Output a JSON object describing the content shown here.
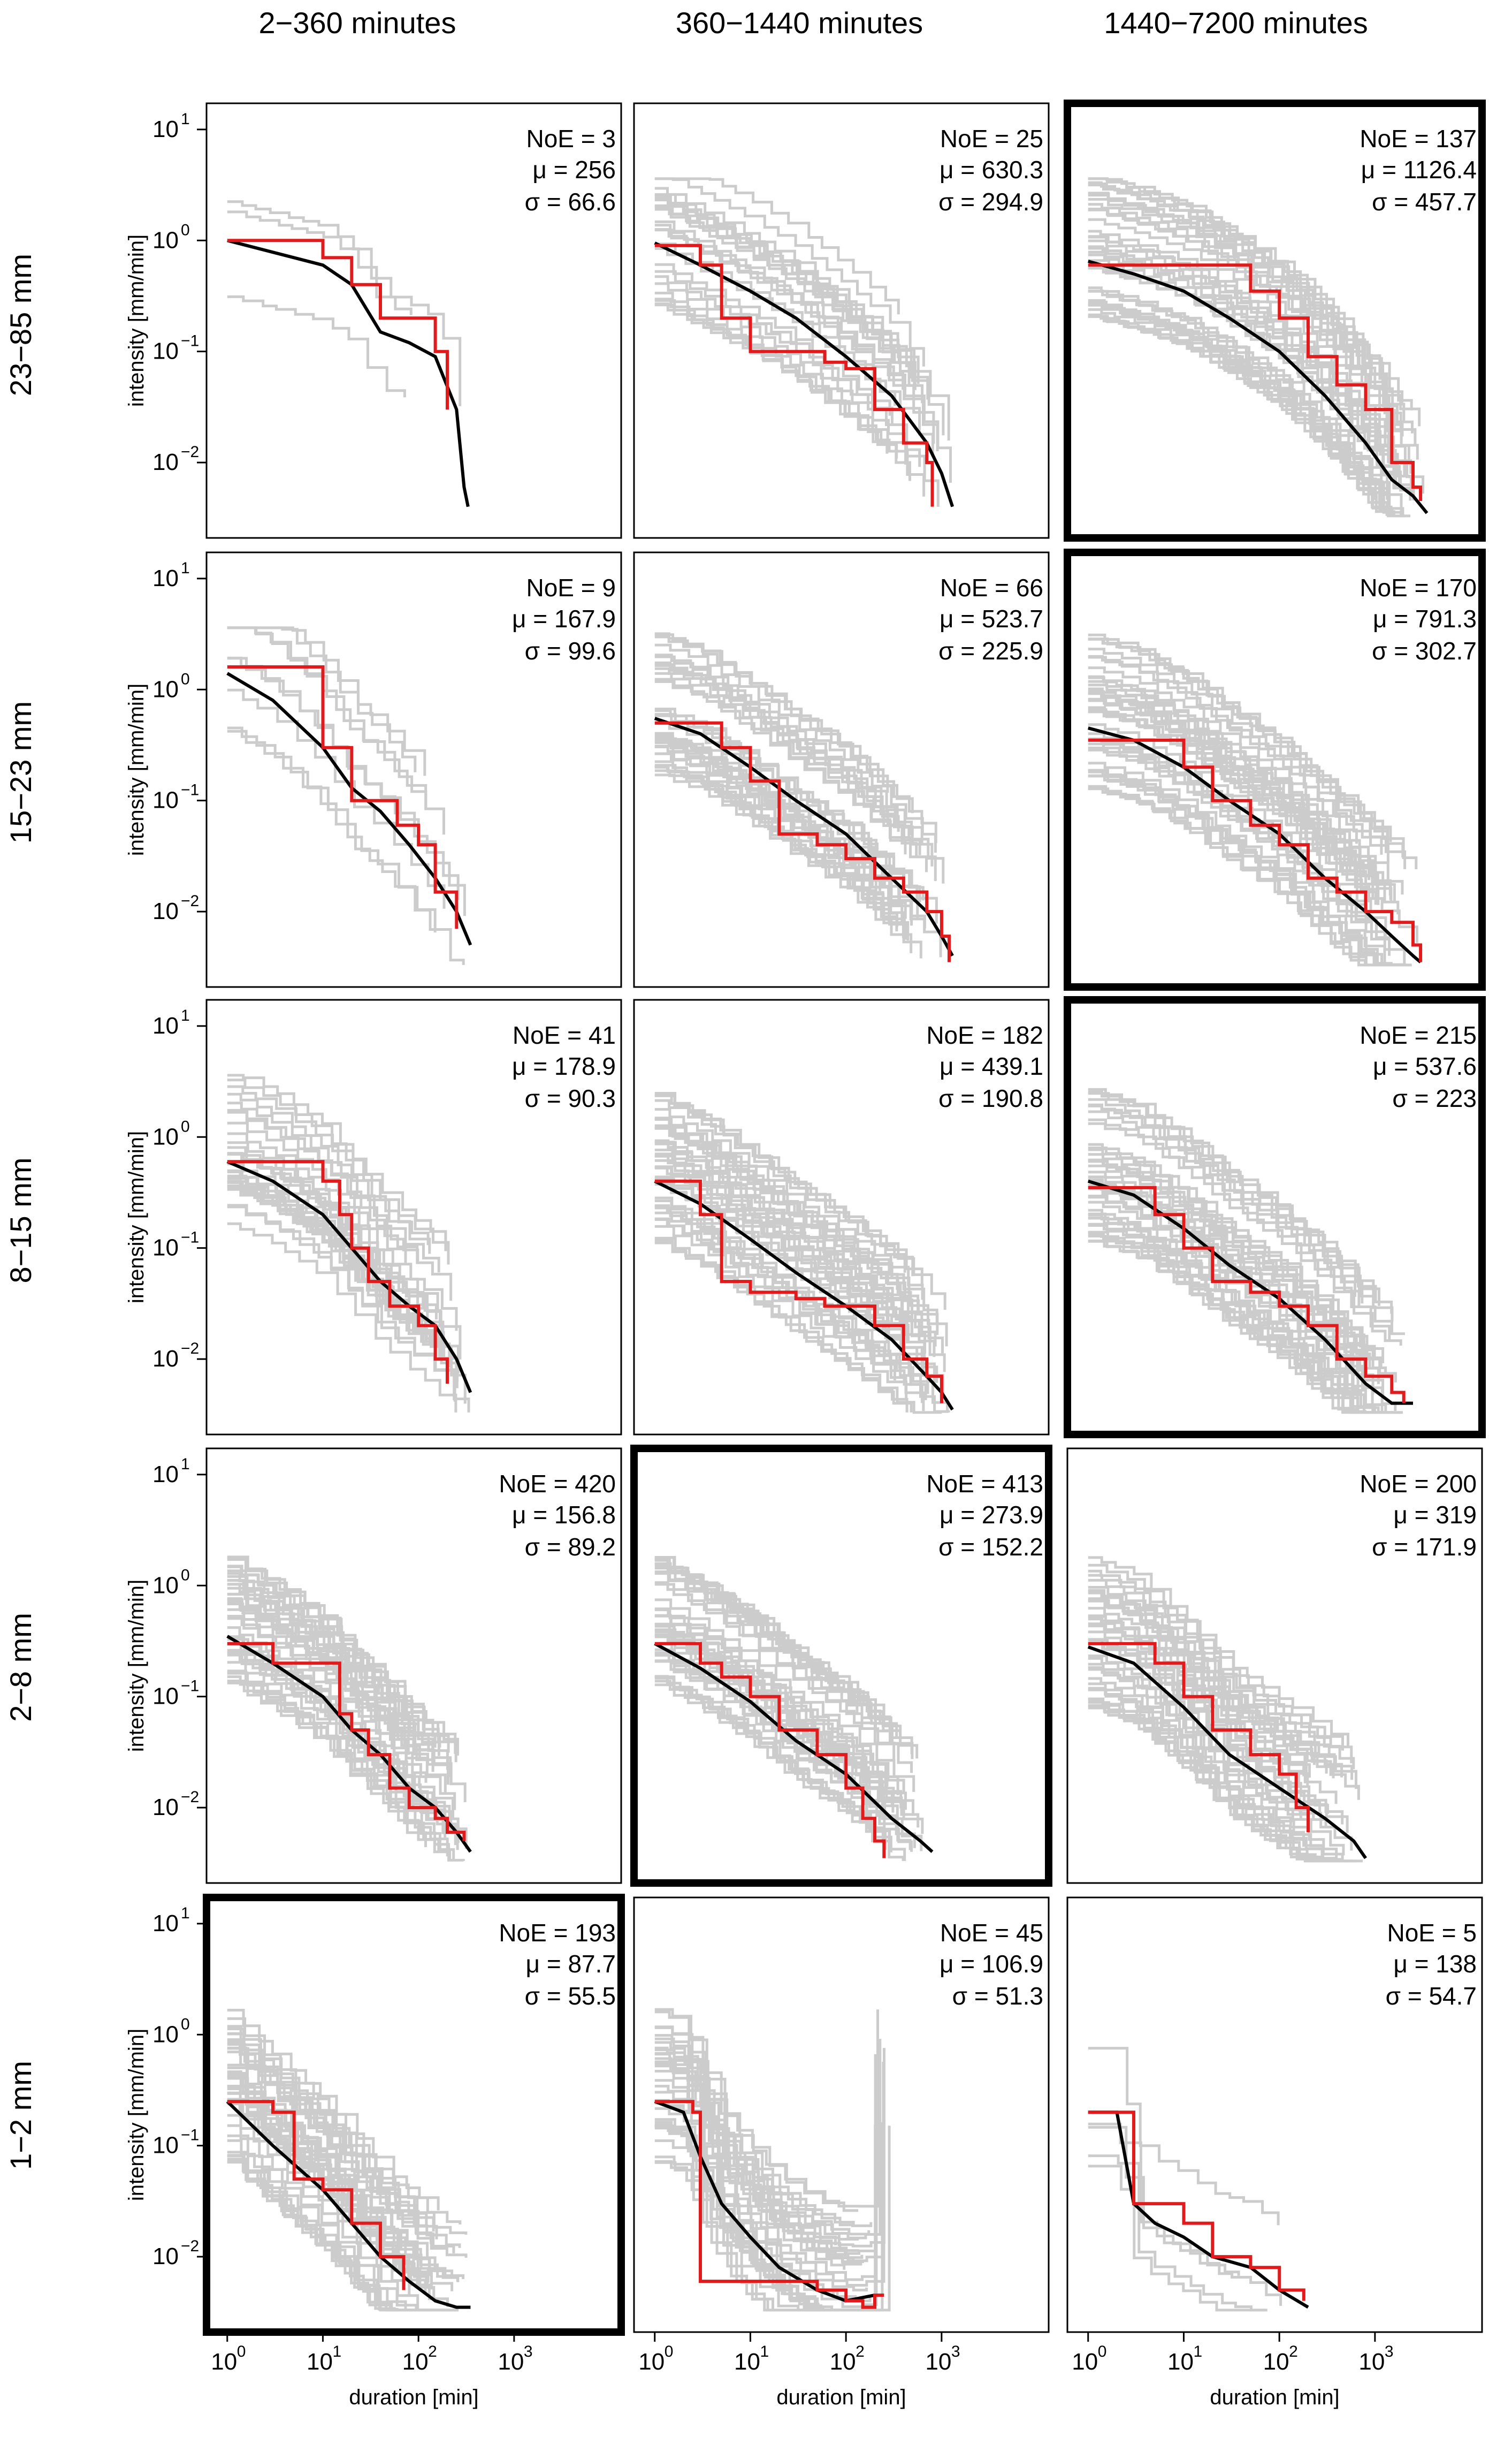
{
  "figure": {
    "col_labels": [
      "2−360 minutes",
      "360−1440 minutes",
      "1440−7200 minutes"
    ],
    "row_labels": [
      "23−85 mm",
      "15−23 mm",
      "8−15 mm",
      "2−8 mm",
      "1−2 mm"
    ],
    "ylabel": "intensity [mm/min]",
    "xlabel": "duration [min]",
    "x_ticks": [
      "10",
      "10",
      "10",
      "10"
    ],
    "x_tick_exp": [
      "0",
      "1",
      "2",
      "3"
    ],
    "y_ticks": [
      "10",
      "10",
      "10",
      "10"
    ],
    "y_tick_exp": [
      "1",
      "0",
      "−1",
      "−2"
    ],
    "stat_labels": {
      "n": "NoE = ",
      "mu": "μ = ",
      "sigma": "σ = "
    },
    "colors": {
      "gray": "#cccccc",
      "median": "#000000",
      "highlight": "#e31a1c"
    }
  },
  "chart_data": [
    {
      "type": "line",
      "row": 0,
      "col": 0,
      "highlight": false,
      "NoE": "3",
      "mu": "256",
      "sigma": "66.6",
      "xlim": [
        1,
        8000
      ],
      "ylim": [
        0.003,
        12
      ],
      "x_scale": "log",
      "y_scale": "log",
      "n_gray": 3,
      "gray_max_x": 300,
      "seed": 11,
      "median": {
        "x": [
          1,
          10,
          20,
          40,
          80,
          150,
          250,
          300,
          330
        ],
        "y": [
          1.0,
          0.6,
          0.4,
          0.15,
          0.12,
          0.09,
          0.03,
          0.006,
          0.004
        ]
      },
      "red": {
        "x": [
          1,
          10,
          20,
          40,
          80,
          150,
          200
        ],
        "y": [
          1.0,
          0.7,
          0.4,
          0.2,
          0.2,
          0.1,
          0.03
        ]
      }
    },
    {
      "type": "line",
      "row": 0,
      "col": 1,
      "highlight": false,
      "NoE": "25",
      "mu": "630.3",
      "sigma": "294.9",
      "xlim": [
        1,
        8000
      ],
      "ylim": [
        0.003,
        12
      ],
      "x_scale": "log",
      "y_scale": "log",
      "n_gray": 25,
      "gray_max_x": 1300,
      "seed": 12,
      "median": {
        "x": [
          1,
          3,
          10,
          30,
          100,
          300,
          700,
          1000,
          1300
        ],
        "y": [
          0.95,
          0.6,
          0.35,
          0.2,
          0.09,
          0.04,
          0.015,
          0.008,
          0.004
        ]
      },
      "red": {
        "x": [
          1,
          3,
          5,
          10,
          30,
          60,
          100,
          200,
          400,
          700,
          800
        ],
        "y": [
          0.9,
          0.6,
          0.2,
          0.1,
          0.1,
          0.08,
          0.07,
          0.03,
          0.015,
          0.01,
          0.004
        ]
      }
    },
    {
      "type": "line",
      "row": 0,
      "col": 2,
      "highlight": true,
      "NoE": "137",
      "mu": "1126.4",
      "sigma": "457.7",
      "xlim": [
        1,
        8000
      ],
      "ylim": [
        0.003,
        12
      ],
      "x_scale": "log",
      "y_scale": "log",
      "n_gray": 40,
      "gray_max_x": 3500,
      "seed": 13,
      "median": {
        "x": [
          1,
          3,
          10,
          30,
          100,
          300,
          800,
          1500,
          2500,
          3500
        ],
        "y": [
          0.65,
          0.5,
          0.35,
          0.2,
          0.1,
          0.04,
          0.015,
          0.007,
          0.005,
          0.0035
        ]
      },
      "red": {
        "x": [
          1,
          10,
          50,
          100,
          200,
          400,
          800,
          1500,
          2500,
          3000
        ],
        "y": [
          0.6,
          0.6,
          0.35,
          0.2,
          0.09,
          0.05,
          0.03,
          0.01,
          0.006,
          0.0045
        ]
      }
    },
    {
      "type": "line",
      "row": 1,
      "col": 0,
      "highlight": false,
      "NoE": "9",
      "mu": "167.9",
      "sigma": "99.6",
      "xlim": [
        1,
        8000
      ],
      "ylim": [
        0.003,
        12
      ],
      "x_scale": "log",
      "y_scale": "log",
      "n_gray": 9,
      "gray_max_x": 350,
      "seed": 21,
      "median": {
        "x": [
          1,
          3,
          10,
          20,
          40,
          80,
          150,
          250,
          350
        ],
        "y": [
          1.4,
          0.8,
          0.3,
          0.13,
          0.08,
          0.04,
          0.02,
          0.01,
          0.005
        ]
      },
      "red": {
        "x": [
          1,
          5,
          10,
          20,
          30,
          60,
          100,
          150,
          250
        ],
        "y": [
          1.6,
          1.6,
          0.3,
          0.1,
          0.1,
          0.06,
          0.04,
          0.015,
          0.007
        ]
      }
    },
    {
      "type": "line",
      "row": 1,
      "col": 1,
      "highlight": false,
      "NoE": "66",
      "mu": "523.7",
      "sigma": "225.9",
      "xlim": [
        1,
        8000
      ],
      "ylim": [
        0.003,
        12
      ],
      "x_scale": "log",
      "y_scale": "log",
      "n_gray": 35,
      "gray_max_x": 1300,
      "seed": 22,
      "median": {
        "x": [
          1,
          3,
          10,
          30,
          100,
          300,
          700,
          1000,
          1300
        ],
        "y": [
          0.55,
          0.4,
          0.2,
          0.1,
          0.05,
          0.02,
          0.01,
          0.006,
          0.004
        ]
      },
      "red": {
        "x": [
          1,
          5,
          10,
          20,
          50,
          100,
          200,
          400,
          700,
          1000,
          1200
        ],
        "y": [
          0.5,
          0.3,
          0.15,
          0.05,
          0.04,
          0.03,
          0.02,
          0.015,
          0.01,
          0.006,
          0.0035
        ]
      }
    },
    {
      "type": "line",
      "row": 1,
      "col": 2,
      "highlight": true,
      "NoE": "170",
      "mu": "791.3",
      "sigma": "302.7",
      "xlim": [
        1,
        8000
      ],
      "ylim": [
        0.003,
        12
      ],
      "x_scale": "log",
      "y_scale": "log",
      "n_gray": 40,
      "gray_max_x": 3000,
      "seed": 23,
      "median": {
        "x": [
          1,
          3,
          10,
          30,
          100,
          300,
          800,
          1500,
          2500,
          3000
        ],
        "y": [
          0.45,
          0.35,
          0.2,
          0.1,
          0.05,
          0.02,
          0.01,
          0.006,
          0.004,
          0.0035
        ]
      },
      "red": {
        "x": [
          1,
          10,
          20,
          50,
          100,
          200,
          400,
          800,
          1500,
          2500,
          3000
        ],
        "y": [
          0.35,
          0.2,
          0.1,
          0.06,
          0.04,
          0.02,
          0.015,
          0.01,
          0.008,
          0.005,
          0.0035
        ]
      }
    },
    {
      "type": "line",
      "row": 2,
      "col": 0,
      "highlight": false,
      "NoE": "41",
      "mu": "178.9",
      "sigma": "90.3",
      "xlim": [
        1,
        8000
      ],
      "ylim": [
        0.003,
        12
      ],
      "x_scale": "log",
      "y_scale": "log",
      "n_gray": 30,
      "gray_max_x": 350,
      "seed": 31,
      "median": {
        "x": [
          1,
          3,
          10,
          20,
          40,
          80,
          150,
          250,
          350
        ],
        "y": [
          0.6,
          0.4,
          0.2,
          0.1,
          0.05,
          0.03,
          0.02,
          0.01,
          0.005
        ]
      },
      "red": {
        "x": [
          1,
          10,
          15,
          20,
          30,
          50,
          100,
          150,
          200
        ],
        "y": [
          0.6,
          0.4,
          0.2,
          0.1,
          0.05,
          0.03,
          0.02,
          0.01,
          0.006
        ]
      }
    },
    {
      "type": "line",
      "row": 2,
      "col": 1,
      "highlight": false,
      "NoE": "182",
      "mu": "439.1",
      "sigma": "190.8",
      "xlim": [
        1,
        8000
      ],
      "ylim": [
        0.003,
        12
      ],
      "x_scale": "log",
      "y_scale": "log",
      "n_gray": 40,
      "gray_max_x": 1300,
      "seed": 32,
      "median": {
        "x": [
          1,
          3,
          10,
          30,
          100,
          300,
          700,
          1000,
          1300
        ],
        "y": [
          0.4,
          0.25,
          0.12,
          0.06,
          0.03,
          0.015,
          0.007,
          0.005,
          0.0035
        ]
      },
      "red": {
        "x": [
          1,
          3,
          5,
          10,
          30,
          60,
          100,
          200,
          400,
          700,
          1000
        ],
        "y": [
          0.4,
          0.2,
          0.05,
          0.04,
          0.035,
          0.03,
          0.03,
          0.02,
          0.01,
          0.007,
          0.004
        ]
      }
    },
    {
      "type": "line",
      "row": 2,
      "col": 2,
      "highlight": true,
      "NoE": "215",
      "mu": "537.6",
      "sigma": "223",
      "xlim": [
        1,
        8000
      ],
      "ylim": [
        0.003,
        12
      ],
      "x_scale": "log",
      "y_scale": "log",
      "n_gray": 40,
      "gray_max_x": 2500,
      "seed": 33,
      "median": {
        "x": [
          1,
          3,
          10,
          30,
          100,
          300,
          800,
          1500,
          2500
        ],
        "y": [
          0.4,
          0.3,
          0.15,
          0.07,
          0.035,
          0.015,
          0.006,
          0.004,
          0.004
        ]
      },
      "red": {
        "x": [
          1,
          5,
          10,
          20,
          50,
          100,
          200,
          400,
          800,
          1500,
          2000
        ],
        "y": [
          0.35,
          0.2,
          0.1,
          0.05,
          0.04,
          0.03,
          0.02,
          0.01,
          0.007,
          0.005,
          0.004
        ]
      }
    },
    {
      "type": "line",
      "row": 3,
      "col": 0,
      "highlight": false,
      "NoE": "420",
      "mu": "156.8",
      "sigma": "89.2",
      "xlim": [
        1,
        8000
      ],
      "ylim": [
        0.003,
        12
      ],
      "x_scale": "log",
      "y_scale": "log",
      "n_gray": 40,
      "gray_max_x": 350,
      "seed": 41,
      "median": {
        "x": [
          1,
          3,
          10,
          20,
          40,
          80,
          150,
          250,
          350
        ],
        "y": [
          0.35,
          0.2,
          0.1,
          0.05,
          0.03,
          0.015,
          0.01,
          0.006,
          0.004
        ]
      },
      "red": {
        "x": [
          1,
          3,
          10,
          15,
          20,
          30,
          50,
          80,
          100,
          150,
          200,
          300
        ],
        "y": [
          0.3,
          0.2,
          0.2,
          0.07,
          0.05,
          0.03,
          0.015,
          0.01,
          0.01,
          0.008,
          0.006,
          0.005
        ]
      }
    },
    {
      "type": "line",
      "row": 3,
      "col": 1,
      "highlight": true,
      "NoE": "413",
      "mu": "273.9",
      "sigma": "152.2",
      "xlim": [
        1,
        8000
      ],
      "ylim": [
        0.003,
        12
      ],
      "x_scale": "log",
      "y_scale": "log",
      "n_gray": 40,
      "gray_max_x": 800,
      "seed": 42,
      "median": {
        "x": [
          1,
          3,
          10,
          30,
          100,
          300,
          600,
          800
        ],
        "y": [
          0.3,
          0.18,
          0.09,
          0.04,
          0.02,
          0.008,
          0.005,
          0.004
        ]
      },
      "red": {
        "x": [
          1,
          3,
          5,
          10,
          20,
          50,
          100,
          150,
          200,
          250
        ],
        "y": [
          0.3,
          0.2,
          0.15,
          0.1,
          0.05,
          0.03,
          0.015,
          0.008,
          0.005,
          0.0035
        ]
      }
    },
    {
      "type": "line",
      "row": 3,
      "col": 2,
      "highlight": false,
      "NoE": "200",
      "mu": "319",
      "sigma": "171.9",
      "xlim": [
        1,
        8000
      ],
      "ylim": [
        0.003,
        12
      ],
      "x_scale": "log",
      "y_scale": "log",
      "n_gray": 40,
      "gray_max_x": 800,
      "seed": 43,
      "median": {
        "x": [
          1,
          3,
          10,
          30,
          100,
          300,
          600,
          800
        ],
        "y": [
          0.28,
          0.2,
          0.08,
          0.03,
          0.015,
          0.008,
          0.005,
          0.0035
        ]
      },
      "red": {
        "x": [
          1,
          3,
          5,
          10,
          20,
          50,
          100,
          150,
          200
        ],
        "y": [
          0.3,
          0.3,
          0.2,
          0.1,
          0.05,
          0.03,
          0.02,
          0.01,
          0.006
        ]
      }
    },
    {
      "type": "line",
      "row": 4,
      "col": 0,
      "highlight": true,
      "NoE": "193",
      "mu": "87.7",
      "sigma": "55.5",
      "xlim": [
        1,
        8000
      ],
      "ylim": [
        0.003,
        12
      ],
      "x_scale": "log",
      "y_scale": "log",
      "n_gray": 40,
      "gray_max_x": 350,
      "seed": 51,
      "median": {
        "x": [
          1,
          3,
          10,
          20,
          40,
          80,
          150,
          250,
          350
        ],
        "y": [
          0.25,
          0.1,
          0.04,
          0.02,
          0.01,
          0.006,
          0.004,
          0.0035,
          0.0035
        ]
      },
      "red": {
        "x": [
          1,
          3,
          5,
          10,
          20,
          40,
          70
        ],
        "y": [
          0.25,
          0.2,
          0.05,
          0.04,
          0.02,
          0.01,
          0.005
        ]
      }
    },
    {
      "type": "line",
      "row": 4,
      "col": 1,
      "highlight": false,
      "NoE": "45",
      "mu": "106.9",
      "sigma": "51.3",
      "xlim": [
        1,
        8000
      ],
      "ylim": [
        0.003,
        12
      ],
      "x_scale": "log",
      "y_scale": "log",
      "n_gray": 35,
      "gray_max_x": 300,
      "seed": 52,
      "median": {
        "x": [
          1,
          2,
          3,
          5,
          10,
          20,
          50,
          100,
          200
        ],
        "y": [
          0.25,
          0.2,
          0.08,
          0.03,
          0.015,
          0.008,
          0.005,
          0.004,
          0.0045
        ]
      },
      "red": {
        "x": [
          1,
          2,
          2.5,
          3,
          10,
          50,
          100,
          150,
          200,
          250
        ],
        "y": [
          0.25,
          0.25,
          0.2,
          0.006,
          0.006,
          0.005,
          0.004,
          0.0035,
          0.0045,
          0.0045
        ]
      }
    },
    {
      "type": "line",
      "row": 4,
      "col": 2,
      "highlight": false,
      "NoE": "5",
      "mu": "138",
      "sigma": "54.7",
      "xlim": [
        1,
        8000
      ],
      "ylim": [
        0.003,
        12
      ],
      "x_scale": "log",
      "y_scale": "log",
      "n_gray": 5,
      "gray_max_x": 200,
      "seed": 53,
      "median": {
        "x": [
          1,
          2,
          3,
          5,
          10,
          20,
          50,
          100,
          200
        ],
        "y": [
          0.2,
          0.2,
          0.03,
          0.02,
          0.015,
          0.01,
          0.008,
          0.005,
          0.0035
        ]
      },
      "red": {
        "x": [
          1,
          2,
          3,
          5,
          10,
          20,
          50,
          100,
          180
        ],
        "y": [
          0.2,
          0.2,
          0.03,
          0.03,
          0.02,
          0.01,
          0.008,
          0.005,
          0.004
        ]
      }
    }
  ]
}
